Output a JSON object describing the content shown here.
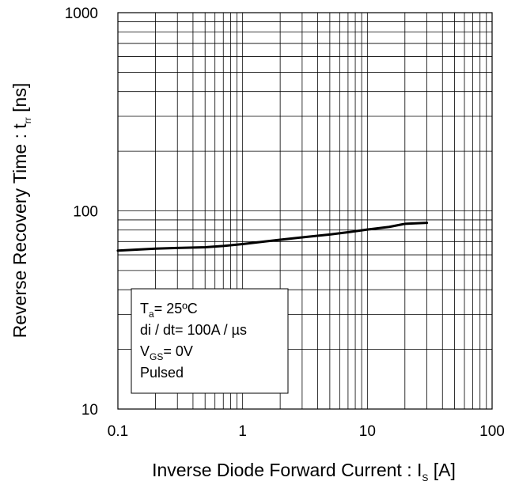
{
  "chart_data": {
    "type": "line",
    "x_scale": "log",
    "y_scale": "log",
    "xlim": [
      0.1,
      100
    ],
    "ylim": [
      10,
      1000
    ],
    "grid": true,
    "xlabel": {
      "main": "Inverse Diode Forward Current : I",
      "sub": "S",
      "tail": " [A]"
    },
    "ylabel": {
      "main": "Reverse Recovery Time : t",
      "sub": "rr",
      "tail": " [ns]"
    },
    "x_ticks": [
      {
        "value": 0.1,
        "label": "0.1"
      },
      {
        "value": 1,
        "label": "1"
      },
      {
        "value": 10,
        "label": "10"
      },
      {
        "value": 100,
        "label": "100"
      }
    ],
    "y_ticks": [
      {
        "value": 10,
        "label": "10"
      },
      {
        "value": 100,
        "label": "100"
      },
      {
        "value": 1000,
        "label": "1000"
      }
    ],
    "series": [
      {
        "color": "#000000",
        "x": [
          0.1,
          0.2,
          0.3,
          0.5,
          0.7,
          1,
          1.5,
          2,
          3,
          5,
          7,
          10,
          15,
          20,
          30
        ],
        "y": [
          63,
          64.5,
          65,
          65.5,
          66.5,
          68,
          70,
          71.5,
          73.5,
          76,
          78,
          80.5,
          83,
          86,
          87
        ]
      }
    ],
    "annotation": {
      "lines": [
        {
          "main": "T",
          "sub": "a",
          "tail": "= 25ºC"
        },
        {
          "main": "di / dt= 100A / µs",
          "sub": "",
          "tail": ""
        },
        {
          "main": "V",
          "sub": "GS",
          "tail": "= 0V"
        },
        {
          "main": "Pulsed",
          "sub": "",
          "tail": ""
        }
      ]
    }
  }
}
